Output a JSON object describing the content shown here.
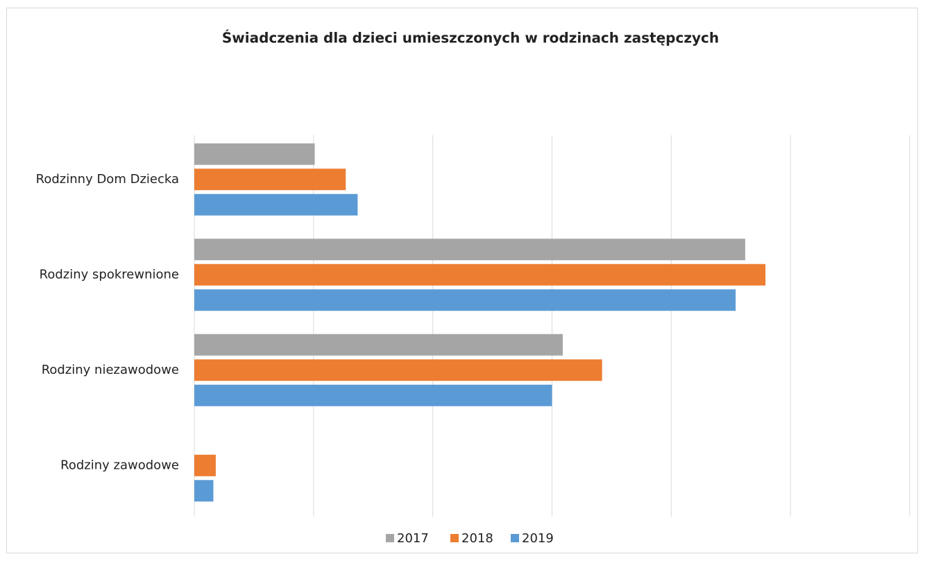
{
  "chart_data": {
    "type": "hbar",
    "title": "Świadczenia dla dzieci umieszczonych w rodzinach zastępczych",
    "categories": [
      "Rodzinny Dom Dziecka",
      "Rodziny spokrewnione",
      "Rodziny niezawodowe",
      "Rodziny zawodowe"
    ],
    "series": [
      {
        "name": "2017",
        "color": "#a5a5a5",
        "values": [
          1.01,
          4.62,
          3.09,
          0
        ]
      },
      {
        "name": "2018",
        "color": "#ed7d31",
        "values": [
          1.27,
          4.79,
          3.42,
          0.18
        ]
      },
      {
        "name": "2019",
        "color": "#5b9bd5",
        "values": [
          1.37,
          4.54,
          3.0,
          0.16
        ]
      }
    ],
    "xlim": [
      0,
      6
    ],
    "xticks": [
      0,
      1,
      2,
      3,
      4,
      5,
      6
    ],
    "grid": true,
    "legend": "bottom"
  }
}
